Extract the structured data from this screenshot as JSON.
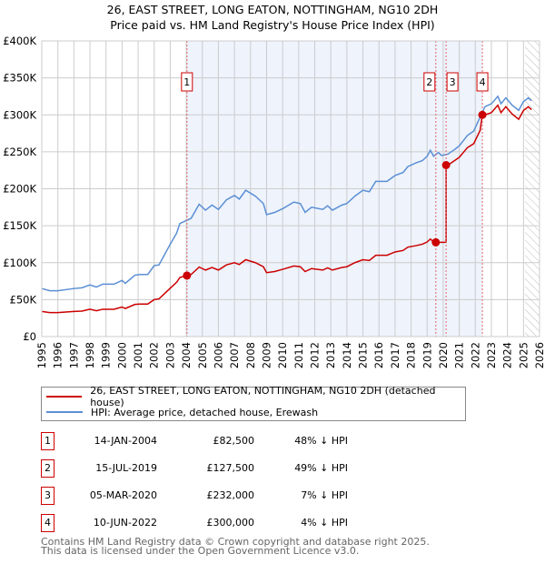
{
  "title": "26, EAST STREET, LONG EATON, NOTTINGHAM, NG10 2DH",
  "subtitle": "Price paid vs. HM Land Registry's House Price Index (HPI)",
  "chart_data": {
    "type": "line",
    "title": "26, EAST STREET, LONG EATON, NOTTINGHAM, NG10 2DH",
    "subtitle": "Price paid vs. HM Land Registry's House Price Index (HPI)",
    "xlim": [
      1995,
      2026
    ],
    "ylim": [
      0,
      400000
    ],
    "x_ticks": [
      "1995",
      "1996",
      "1997",
      "1998",
      "1999",
      "2000",
      "2001",
      "2002",
      "2003",
      "2004",
      "2005",
      "2006",
      "2007",
      "2008",
      "2009",
      "2010",
      "2011",
      "2012",
      "2013",
      "2014",
      "2015",
      "2016",
      "2017",
      "2018",
      "2019",
      "2020",
      "2021",
      "2022",
      "2023",
      "2024",
      "2025",
      "2026"
    ],
    "y_ticks": [
      {
        "v": 0,
        "label": "£0"
      },
      {
        "v": 50000,
        "label": "£50K"
      },
      {
        "v": 100000,
        "label": "£100K"
      },
      {
        "v": 150000,
        "label": "£150K"
      },
      {
        "v": 200000,
        "label": "£200K"
      },
      {
        "v": 250000,
        "label": "£250K"
      },
      {
        "v": 300000,
        "label": "£300K"
      },
      {
        "v": 350000,
        "label": "£350K"
      },
      {
        "v": 400000,
        "label": "£400K"
      }
    ],
    "grid": true,
    "shaded_range": [
      2004.04,
      2022.44
    ],
    "forecast_hatch_from": 2025.1,
    "colors": {
      "property": "#cc0000",
      "hpi": "#5b8fd4",
      "shade": "#eef3fc"
    },
    "series": [
      {
        "name": "26, EAST STREET, LONG EATON, NOTTINGHAM, NG10 2DH (detached house)",
        "unit": "£K",
        "points": [
          [
            1995,
            34
          ],
          [
            1995.5,
            32.5
          ],
          [
            1996,
            32.5
          ],
          [
            1997,
            34
          ],
          [
            1997.5,
            34.5
          ],
          [
            1998,
            37
          ],
          [
            1998.4,
            35
          ],
          [
            1998.8,
            37
          ],
          [
            1999.5,
            37
          ],
          [
            2000,
            40
          ],
          [
            2000.2,
            38
          ],
          [
            2000.8,
            43.5
          ],
          [
            2001.1,
            44
          ],
          [
            2001.6,
            44
          ],
          [
            2002,
            50
          ],
          [
            2002.3,
            51
          ],
          [
            2003,
            65.5
          ],
          [
            2003.4,
            73.5
          ],
          [
            2003.6,
            80
          ],
          [
            2004.04,
            82.5
          ],
          [
            2004.3,
            84
          ],
          [
            2004.8,
            94
          ],
          [
            2005.2,
            90
          ],
          [
            2005.6,
            93.5
          ],
          [
            2006,
            90
          ],
          [
            2006.5,
            97
          ],
          [
            2007,
            100
          ],
          [
            2007.3,
            97.5
          ],
          [
            2007.7,
            104
          ],
          [
            2008.3,
            100
          ],
          [
            2008.8,
            94.5
          ],
          [
            2009,
            86.5
          ],
          [
            2009.5,
            88
          ],
          [
            2010,
            91
          ],
          [
            2010.7,
            95.5
          ],
          [
            2011.1,
            94.5
          ],
          [
            2011.4,
            88
          ],
          [
            2011.8,
            92
          ],
          [
            2012.5,
            90
          ],
          [
            2012.8,
            93
          ],
          [
            2013.1,
            90
          ],
          [
            2013.7,
            93.5
          ],
          [
            2014,
            94.5
          ],
          [
            2014.5,
            100
          ],
          [
            2015,
            104
          ],
          [
            2015.4,
            103
          ],
          [
            2015.8,
            110
          ],
          [
            2016.5,
            110
          ],
          [
            2017,
            114.5
          ],
          [
            2017.5,
            116.5
          ],
          [
            2017.8,
            121
          ],
          [
            2018.3,
            123
          ],
          [
            2018.7,
            125
          ],
          [
            2019,
            128
          ],
          [
            2019.2,
            132
          ],
          [
            2019.4,
            128
          ],
          [
            2019.54,
            127.5
          ],
          [
            2020.18,
            127.5
          ],
          [
            2020.18,
            232
          ],
          [
            2020.3,
            232
          ],
          [
            2020.7,
            238
          ],
          [
            2021,
            242.5
          ],
          [
            2021.5,
            255.5
          ],
          [
            2021.9,
            261
          ],
          [
            2022.3,
            279
          ],
          [
            2022.44,
            300
          ],
          [
            2022.6,
            300
          ],
          [
            2023,
            303
          ],
          [
            2023.4,
            313
          ],
          [
            2023.6,
            303
          ],
          [
            2023.9,
            311
          ],
          [
            2024.3,
            301
          ],
          [
            2024.7,
            294
          ],
          [
            2025,
            306
          ],
          [
            2025.3,
            311
          ],
          [
            2025.5,
            307
          ]
        ]
      },
      {
        "name": "HPI: Average price, detached house, Erewash",
        "unit": "£K",
        "points": [
          [
            1995,
            65
          ],
          [
            1995.5,
            62
          ],
          [
            1996,
            62
          ],
          [
            1997,
            65
          ],
          [
            1997.5,
            66
          ],
          [
            1998,
            70
          ],
          [
            1998.4,
            67
          ],
          [
            1998.8,
            71
          ],
          [
            1999.5,
            71
          ],
          [
            2000,
            76
          ],
          [
            2000.2,
            72
          ],
          [
            2000.8,
            83
          ],
          [
            2001.1,
            84
          ],
          [
            2001.6,
            84
          ],
          [
            2002,
            96
          ],
          [
            2002.3,
            97
          ],
          [
            2003,
            125
          ],
          [
            2003.4,
            140
          ],
          [
            2003.6,
            153
          ],
          [
            2004,
            157
          ],
          [
            2004.3,
            160
          ],
          [
            2004.8,
            179
          ],
          [
            2005.2,
            171
          ],
          [
            2005.6,
            178
          ],
          [
            2006,
            172
          ],
          [
            2006.5,
            185
          ],
          [
            2007,
            191
          ],
          [
            2007.3,
            186
          ],
          [
            2007.7,
            198
          ],
          [
            2008.3,
            190
          ],
          [
            2008.8,
            180
          ],
          [
            2009,
            165
          ],
          [
            2009.5,
            168
          ],
          [
            2010,
            173
          ],
          [
            2010.7,
            182
          ],
          [
            2011.1,
            180
          ],
          [
            2011.4,
            168
          ],
          [
            2011.8,
            175
          ],
          [
            2012.5,
            172
          ],
          [
            2012.8,
            177
          ],
          [
            2013.1,
            171
          ],
          [
            2013.7,
            178
          ],
          [
            2014,
            180
          ],
          [
            2014.5,
            190
          ],
          [
            2015,
            198
          ],
          [
            2015.4,
            196
          ],
          [
            2015.8,
            210
          ],
          [
            2016.5,
            210
          ],
          [
            2017,
            218
          ],
          [
            2017.5,
            222
          ],
          [
            2017.8,
            230
          ],
          [
            2018.3,
            235
          ],
          [
            2018.7,
            238
          ],
          [
            2019,
            244
          ],
          [
            2019.2,
            252
          ],
          [
            2019.4,
            244
          ],
          [
            2019.7,
            249
          ],
          [
            2019.9,
            245
          ],
          [
            2020.3,
            247
          ],
          [
            2020.7,
            253
          ],
          [
            2021,
            258
          ],
          [
            2021.5,
            272
          ],
          [
            2021.9,
            278
          ],
          [
            2022.3,
            297
          ],
          [
            2022.6,
            311
          ],
          [
            2023,
            315
          ],
          [
            2023.4,
            325
          ],
          [
            2023.6,
            315
          ],
          [
            2023.9,
            323
          ],
          [
            2024.3,
            313
          ],
          [
            2024.7,
            306
          ],
          [
            2025,
            318
          ],
          [
            2025.3,
            323
          ],
          [
            2025.5,
            319
          ]
        ]
      }
    ],
    "sales": [
      {
        "label": "1",
        "x": 2004.04,
        "value": 82500
      },
      {
        "label": "2",
        "x": 2019.54,
        "value": 127500
      },
      {
        "label": "3",
        "x": 2020.18,
        "value": 232000
      },
      {
        "label": "4",
        "x": 2022.44,
        "value": 300000
      }
    ]
  },
  "legend": {
    "property": "26, EAST STREET, LONG EATON, NOTTINGHAM, NG10 2DH (detached house)",
    "hpi": "HPI: Average price, detached house, Erewash"
  },
  "transactions": [
    {
      "num": "1",
      "date": "14-JAN-2004",
      "price": "£82,500",
      "hpi": "48% ↓ HPI"
    },
    {
      "num": "2",
      "date": "15-JUL-2019",
      "price": "£127,500",
      "hpi": "49% ↓ HPI"
    },
    {
      "num": "3",
      "date": "05-MAR-2020",
      "price": "£232,000",
      "hpi": "7% ↓ HPI"
    },
    {
      "num": "4",
      "date": "10-JUN-2022",
      "price": "£300,000",
      "hpi": "4% ↓ HPI"
    }
  ],
  "footer": {
    "line1": "Contains HM Land Registry data © Crown copyright and database right 2025.",
    "line2": "This data is licensed under the Open Government Licence v3.0."
  }
}
